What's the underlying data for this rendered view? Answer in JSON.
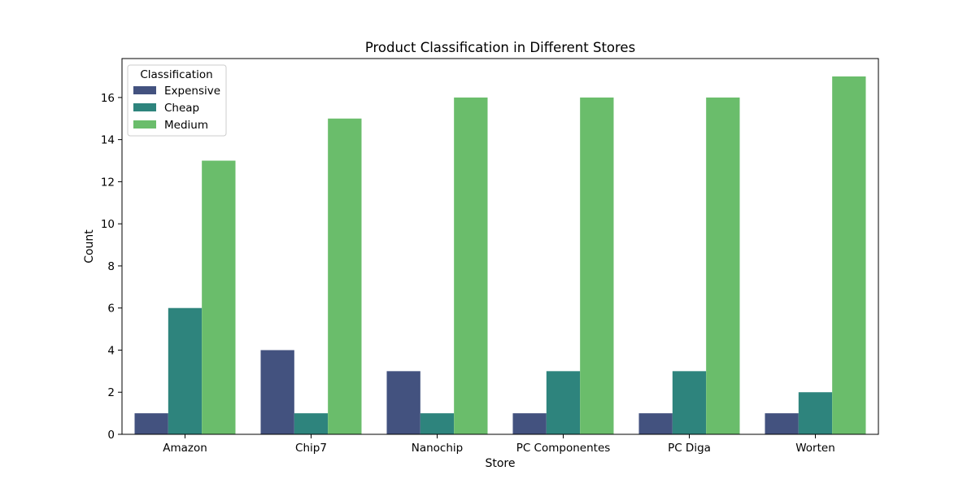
{
  "chart_data": {
    "type": "bar",
    "title": "Product Classification in Different Stores",
    "xlabel": "Store",
    "ylabel": "Count",
    "categories": [
      "Amazon",
      "Chip7",
      "Nanochip",
      "PC Componentes",
      "PC Diga",
      "Worten"
    ],
    "series": [
      {
        "name": "Expensive",
        "color": "#43527f",
        "values": [
          1,
          4,
          3,
          1,
          1,
          1
        ]
      },
      {
        "name": "Cheap",
        "color": "#2e847d",
        "values": [
          6,
          1,
          1,
          3,
          3,
          2
        ]
      },
      {
        "name": "Medium",
        "color": "#6abd6b",
        "values": [
          13,
          15,
          16,
          16,
          16,
          17
        ]
      }
    ],
    "ylim": [
      0,
      17.85
    ],
    "yticks": [
      0,
      2,
      4,
      6,
      8,
      10,
      12,
      14,
      16
    ],
    "grid": false,
    "legend": {
      "title": "Classification",
      "position": "top-left"
    }
  }
}
